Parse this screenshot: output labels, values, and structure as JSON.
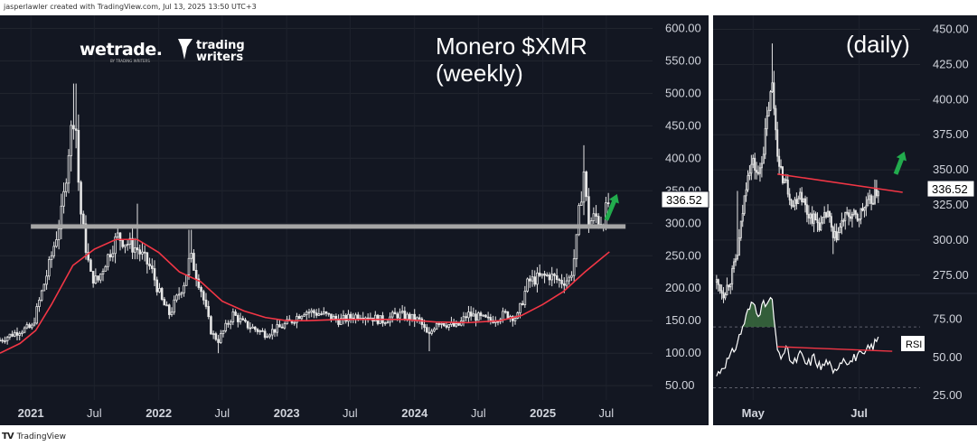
{
  "header": {
    "attribution": "jasperlawler created with TradingView.com, Jul 13, 2025 13:50 UTC+3"
  },
  "footer": {
    "mark": "TV",
    "brand": "TradingView"
  },
  "colors": {
    "background": "#131722",
    "candle": "#e6e6e6",
    "moving_average": "#f23645",
    "support_line": "#a6a6a6",
    "resistance_line": "#f23645",
    "arrow": "#22ab4d",
    "rsi_line": "#ffffff",
    "rsi_fill": "#3a6b3e"
  },
  "logos": {
    "wetrade": "wetrade.",
    "wetrade_sub": "BY TRADING WRITERS",
    "trading_writers_1": "trading",
    "trading_writers_2": "writers"
  },
  "chart_data": [
    {
      "type": "candlestick",
      "title": "Monero $XMR\n(weekly)",
      "title_lines": [
        "Monero $XMR",
        "(weekly)"
      ],
      "x_ticks": [
        {
          "label": "2021",
          "date": "2021-01-01",
          "bold": true
        },
        {
          "label": "Jul",
          "date": "2021-07-01",
          "bold": false
        },
        {
          "label": "2022",
          "date": "2022-01-01",
          "bold": true
        },
        {
          "label": "Jul",
          "date": "2022-07-01",
          "bold": false
        },
        {
          "label": "2023",
          "date": "2023-01-01",
          "bold": true
        },
        {
          "label": "Jul",
          "date": "2023-07-01",
          "bold": false
        },
        {
          "label": "2024",
          "date": "2024-01-01",
          "bold": true
        },
        {
          "label": "Jul",
          "date": "2024-07-01",
          "bold": false
        },
        {
          "label": "2025",
          "date": "2025-01-01",
          "bold": true
        },
        {
          "label": "Jul",
          "date": "2025-07-01",
          "bold": false
        }
      ],
      "xlim": [
        "2020-10-05",
        "2025-11-10"
      ],
      "y_ticks": [
        50,
        100,
        150,
        200,
        250,
        300,
        350,
        400,
        450,
        500,
        550,
        600
      ],
      "y_tick_labels": [
        "50.00",
        "100.00",
        "150.00",
        "200.00",
        "250.00",
        "300.00",
        "350.00",
        "400.00",
        "450.00",
        "500.00",
        "550.00",
        "600.00"
      ],
      "ylim": [
        28,
        620
      ],
      "last_price": 336.52,
      "last_price_label": "336.52",
      "support_level": 295,
      "support_range": [
        "2021-01-01",
        "2025-08-25"
      ],
      "price_series": [
        [
          "2020-10-05",
          120
        ],
        [
          "2020-12-01",
          135
        ],
        [
          "2021-01-05",
          140
        ],
        [
          "2021-01-25",
          180
        ],
        [
          "2021-02-20",
          230
        ],
        [
          "2021-03-10",
          270
        ],
        [
          "2021-04-01",
          320
        ],
        [
          "2021-04-20",
          420
        ],
        [
          "2021-05-07",
          480
        ],
        [
          "2021-05-20",
          330
        ],
        [
          "2021-06-05",
          270
        ],
        [
          "2021-06-20",
          220
        ],
        [
          "2021-07-10",
          210
        ],
        [
          "2021-08-01",
          240
        ],
        [
          "2021-09-05",
          280
        ],
        [
          "2021-10-01",
          270
        ],
        [
          "2021-11-01",
          260
        ],
        [
          "2021-12-10",
          230
        ],
        [
          "2022-01-10",
          180
        ],
        [
          "2022-02-01",
          160
        ],
        [
          "2022-03-15",
          210
        ],
        [
          "2022-04-01",
          250
        ],
        [
          "2022-05-01",
          200
        ],
        [
          "2022-06-01",
          130
        ],
        [
          "2022-06-20",
          120
        ],
        [
          "2022-08-01",
          160
        ],
        [
          "2022-09-01",
          145
        ],
        [
          "2022-11-01",
          130
        ],
        [
          "2022-12-15",
          140
        ],
        [
          "2023-01-15",
          150
        ],
        [
          "2023-02-20",
          165
        ],
        [
          "2023-04-15",
          160
        ],
        [
          "2023-06-01",
          150
        ],
        [
          "2023-08-01",
          160
        ],
        [
          "2023-10-01",
          150
        ],
        [
          "2023-11-15",
          160
        ],
        [
          "2024-01-15",
          150
        ],
        [
          "2024-02-10",
          125
        ],
        [
          "2024-03-05",
          150
        ],
        [
          "2024-05-01",
          140
        ],
        [
          "2024-06-01",
          160
        ],
        [
          "2024-08-01",
          150
        ],
        [
          "2024-09-15",
          160
        ],
        [
          "2024-10-20",
          155
        ],
        [
          "2024-11-20",
          210
        ],
        [
          "2024-12-15",
          215
        ],
        [
          "2025-01-20",
          220
        ],
        [
          "2025-02-20",
          210
        ],
        [
          "2025-03-20",
          215
        ],
        [
          "2025-04-05",
          260
        ],
        [
          "2025-04-15",
          320
        ],
        [
          "2025-04-28",
          380
        ],
        [
          "2025-05-10",
          300
        ],
        [
          "2025-06-01",
          310
        ],
        [
          "2025-06-20",
          300
        ],
        [
          "2025-07-10",
          336.52
        ]
      ],
      "wick_highs": [
        [
          "2021-05-07",
          515
        ],
        [
          "2021-11-01",
          330
        ],
        [
          "2022-04-01",
          290
        ],
        [
          "2025-04-28",
          420
        ]
      ],
      "wick_lows": [
        [
          "2022-06-20",
          100
        ],
        [
          "2024-02-10",
          103
        ]
      ],
      "moving_average": [
        [
          "2020-10-05",
          100
        ],
        [
          "2020-12-01",
          115
        ],
        [
          "2021-01-15",
          135
        ],
        [
          "2021-03-01",
          175
        ],
        [
          "2021-05-01",
          235
        ],
        [
          "2021-07-01",
          260
        ],
        [
          "2021-09-01",
          275
        ],
        [
          "2021-11-01",
          275
        ],
        [
          "2022-01-01",
          255
        ],
        [
          "2022-03-01",
          225
        ],
        [
          "2022-05-01",
          210
        ],
        [
          "2022-07-01",
          180
        ],
        [
          "2022-09-01",
          165
        ],
        [
          "2022-11-01",
          155
        ],
        [
          "2023-01-01",
          150
        ],
        [
          "2023-03-01",
          150
        ],
        [
          "2023-06-01",
          152
        ],
        [
          "2023-09-01",
          152
        ],
        [
          "2023-12-01",
          152
        ],
        [
          "2024-03-01",
          148
        ],
        [
          "2024-06-01",
          147
        ],
        [
          "2024-09-01",
          150
        ],
        [
          "2024-11-01",
          158
        ],
        [
          "2025-01-01",
          175
        ],
        [
          "2025-03-01",
          195
        ],
        [
          "2025-05-01",
          225
        ],
        [
          "2025-06-15",
          245
        ],
        [
          "2025-07-10",
          256
        ]
      ],
      "arrow": {
        "from": [
          "2025-07-01",
          305
        ],
        "to": [
          "2025-08-01",
          345
        ]
      }
    },
    {
      "type": "candlestick",
      "title": "(daily)",
      "x_ticks": [
        {
          "label": "May",
          "date": "2025-05-01",
          "bold": true
        },
        {
          "label": "Jul",
          "date": "2025-07-01",
          "bold": true
        }
      ],
      "xlim": [
        "2025-04-08",
        "2025-08-05"
      ],
      "y_ticks": [
        275,
        300,
        325,
        350,
        375,
        400,
        425,
        450
      ],
      "y_tick_labels": [
        "275.00",
        "300.00",
        "325.00",
        "350.00",
        "375.00",
        "400.00",
        "425.00",
        "450.00"
      ],
      "ylim": [
        262,
        460
      ],
      "last_price": 336.52,
      "last_price_label": "336.52",
      "price_series": [
        [
          "2025-04-10",
          270
        ],
        [
          "2025-04-14",
          262
        ],
        [
          "2025-04-18",
          272
        ],
        [
          "2025-04-22",
          290
        ],
        [
          "2025-04-25",
          320
        ],
        [
          "2025-04-28",
          350
        ],
        [
          "2025-05-01",
          355
        ],
        [
          "2025-05-04",
          345
        ],
        [
          "2025-05-07",
          365
        ],
        [
          "2025-05-10",
          395
        ],
        [
          "2025-05-12",
          410
        ],
        [
          "2025-05-14",
          380
        ],
        [
          "2025-05-16",
          350
        ],
        [
          "2025-05-20",
          340
        ],
        [
          "2025-05-24",
          325
        ],
        [
          "2025-05-28",
          335
        ],
        [
          "2025-06-01",
          320
        ],
        [
          "2025-06-05",
          315
        ],
        [
          "2025-06-09",
          310
        ],
        [
          "2025-06-13",
          320
        ],
        [
          "2025-06-16",
          300
        ],
        [
          "2025-06-19",
          305
        ],
        [
          "2025-06-22",
          315
        ],
        [
          "2025-06-26",
          318
        ],
        [
          "2025-06-30",
          315
        ],
        [
          "2025-07-03",
          322
        ],
        [
          "2025-07-06",
          325
        ],
        [
          "2025-07-09",
          330
        ],
        [
          "2025-07-12",
          336.52
        ]
      ],
      "wick_highs": [
        [
          "2025-04-22",
          335
        ],
        [
          "2025-05-12",
          440
        ]
      ],
      "wick_lows": [
        [
          "2025-04-14",
          262
        ],
        [
          "2025-06-16",
          290
        ]
      ],
      "resistance_line": {
        "from": [
          "2025-05-15",
          347
        ],
        "to": [
          "2025-07-26",
          334
        ]
      },
      "arrow": {
        "from": [
          "2025-07-22",
          347
        ],
        "to": [
          "2025-07-27",
          363
        ]
      }
    },
    {
      "type": "line",
      "title": "RSI",
      "legend_label": "RSI",
      "x_ticks": [],
      "xlim": [
        "2025-04-08",
        "2025-08-05"
      ],
      "y_ticks": [
        25,
        50,
        75
      ],
      "y_tick_labels": [
        "25.00",
        "50.00",
        "75.00"
      ],
      "ylim": [
        22,
        92
      ],
      "overbought": 70,
      "oversold": 30,
      "series": [
        [
          "2025-04-10",
          38
        ],
        [
          "2025-04-14",
          45
        ],
        [
          "2025-04-18",
          50
        ],
        [
          "2025-04-22",
          60
        ],
        [
          "2025-04-25",
          70
        ],
        [
          "2025-04-28",
          80
        ],
        [
          "2025-05-01",
          86
        ],
        [
          "2025-05-04",
          80
        ],
        [
          "2025-05-07",
          84
        ],
        [
          "2025-05-10",
          86
        ],
        [
          "2025-05-12",
          88
        ],
        [
          "2025-05-14",
          62
        ],
        [
          "2025-05-16",
          50
        ],
        [
          "2025-05-20",
          55
        ],
        [
          "2025-05-24",
          45
        ],
        [
          "2025-05-28",
          52
        ],
        [
          "2025-06-01",
          45
        ],
        [
          "2025-06-05",
          50
        ],
        [
          "2025-06-09",
          43
        ],
        [
          "2025-06-13",
          48
        ],
        [
          "2025-06-16",
          38
        ],
        [
          "2025-06-19",
          46
        ],
        [
          "2025-06-22",
          50
        ],
        [
          "2025-06-26",
          47
        ],
        [
          "2025-06-30",
          52
        ],
        [
          "2025-07-03",
          50
        ],
        [
          "2025-07-06",
          55
        ],
        [
          "2025-07-09",
          58
        ],
        [
          "2025-07-12",
          62
        ]
      ],
      "trend_line": {
        "from": [
          "2025-05-15",
          57
        ],
        "to": [
          "2025-07-20",
          54
        ]
      }
    }
  ]
}
